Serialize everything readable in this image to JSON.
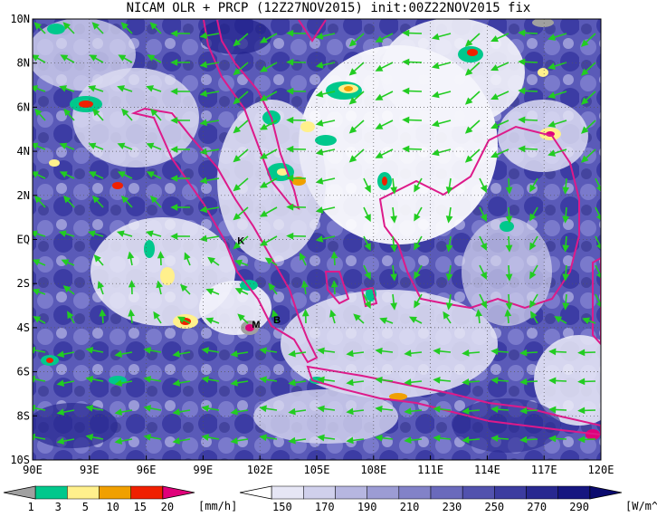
{
  "title": "NICAM OLR + PRCP (12Z27NOV2015) init:00Z22NOV2015 fix",
  "map": {
    "lon_range": [
      90,
      120
    ],
    "lat_range": [
      -10,
      10
    ],
    "x_ticks": [
      "90E",
      "93E",
      "96E",
      "99E",
      "102E",
      "105E",
      "108E",
      "111E",
      "114E",
      "117E",
      "120E"
    ],
    "y_ticks": [
      "10N",
      "8N",
      "6N",
      "4N",
      "2N",
      "EQ",
      "2S",
      "4S",
      "6S",
      "8S",
      "10S"
    ],
    "grid": true,
    "place_labels": [
      {
        "text": "K",
        "lon": 101.0,
        "lat": -0.2
      },
      {
        "text": "M",
        "lon": 101.8,
        "lat": -4.0
      },
      {
        "text": "B",
        "lon": 102.9,
        "lat": -3.8
      }
    ],
    "colors": {
      "coastline": "#dd1a8a",
      "wind_vector": "#22cc22",
      "background": "#ffffff"
    }
  },
  "colorbar_prcp": {
    "labels": [
      "1",
      "3",
      "5",
      "10",
      "15",
      "20"
    ],
    "unit": "[mm/h]",
    "colors": [
      "#a0a0a0",
      "#00c88c",
      "#fff08c",
      "#f0a000",
      "#f02000",
      "#e0007a"
    ]
  },
  "colorbar_olr": {
    "labels": [
      "150",
      "170",
      "190",
      "210",
      "230",
      "250",
      "270",
      "290"
    ],
    "unit": "[W/m^2]",
    "colors": [
      "#ffffff",
      "#e6e6f5",
      "#d0d0ec",
      "#b6b6e0",
      "#9c9cd4",
      "#8282c8",
      "#6a6abc",
      "#5252ae",
      "#3c3ca0",
      "#282890",
      "#161680",
      "#0a0a6e"
    ]
  }
}
